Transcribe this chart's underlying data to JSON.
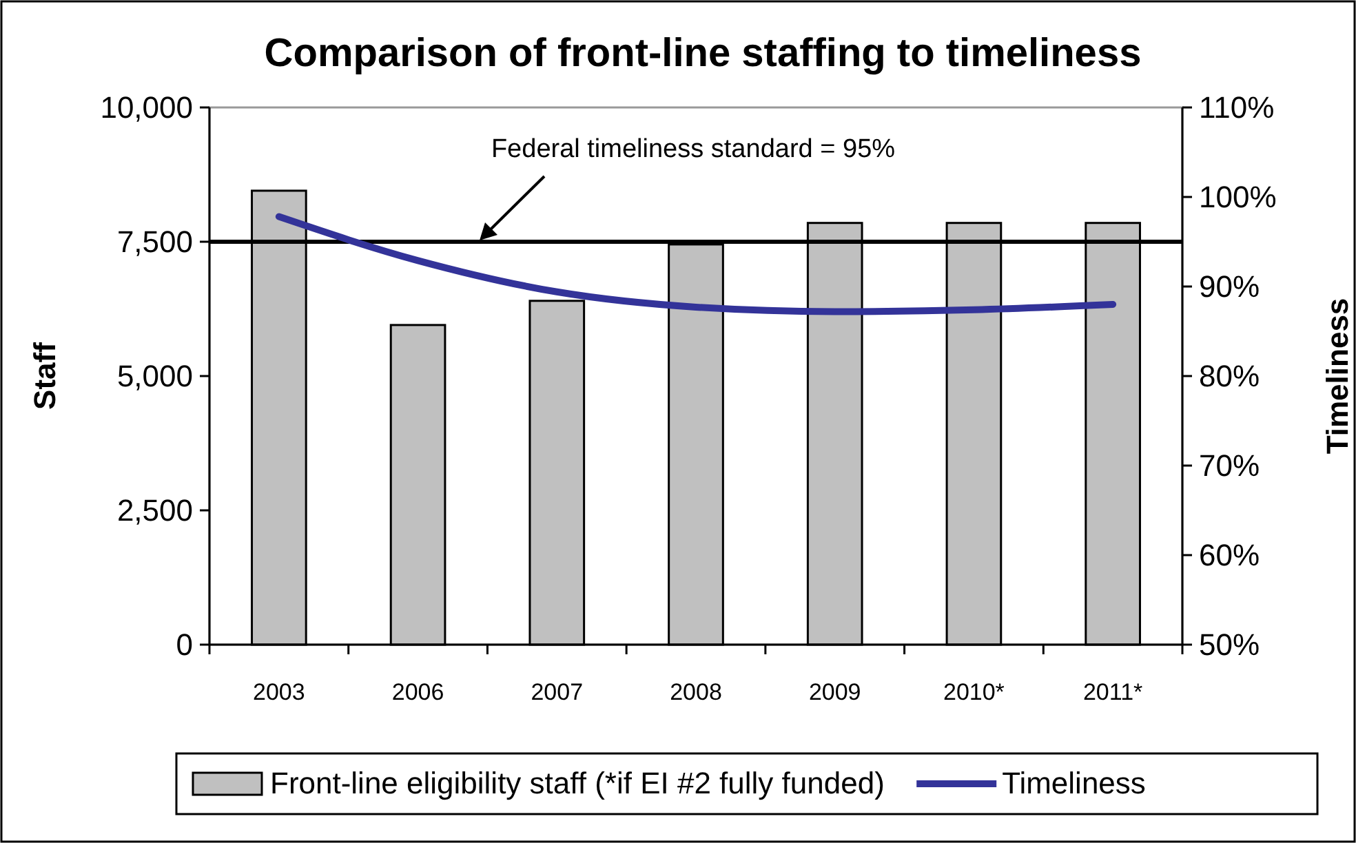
{
  "chart_data": {
    "type": "bar",
    "title": "Comparison of front-line staffing to timeliness",
    "ylabel": "Staff",
    "y2label": "Timeliness",
    "categories": [
      "2003",
      "2006",
      "2007",
      "2008",
      "2009",
      "2010*",
      "2011*"
    ],
    "series": [
      {
        "name": "Front-line eligibility staff (*if EI #2 fully funded)",
        "color": "#c0c0c0",
        "values": [
          8450,
          5950,
          6400,
          7450,
          7850,
          7850,
          7850
        ]
      },
      {
        "name": "Timeliness",
        "type": "line",
        "axis": "y2",
        "color": "#333399",
        "values": [
          97.8,
          92.9,
          89.4,
          87.7,
          87.2,
          87.4,
          88.0
        ]
      }
    ],
    "ylim": [
      0,
      10000
    ],
    "yticks": [
      {
        "value": 0,
        "label": "0"
      },
      {
        "value": 2500,
        "label": "2,500"
      },
      {
        "value": 5000,
        "label": "5,000"
      },
      {
        "value": 7500,
        "label": "7,500"
      },
      {
        "value": 10000,
        "label": "10,000"
      }
    ],
    "y2lim": [
      50,
      110
    ],
    "y2ticks": [
      {
        "value": 50,
        "label": "50%"
      },
      {
        "value": 60,
        "label": "60%"
      },
      {
        "value": 70,
        "label": "70%"
      },
      {
        "value": 80,
        "label": "80%"
      },
      {
        "value": 90,
        "label": "90%"
      },
      {
        "value": 100,
        "label": "100%"
      },
      {
        "value": 110,
        "label": "110%"
      }
    ],
    "ref_lines": [
      {
        "axis": "y2",
        "value": 95,
        "label": "Federal timeliness standard = 95%",
        "color": "#000000"
      }
    ],
    "grid": false,
    "legend": "bottom",
    "marker": "none",
    "line_style": "solid"
  }
}
